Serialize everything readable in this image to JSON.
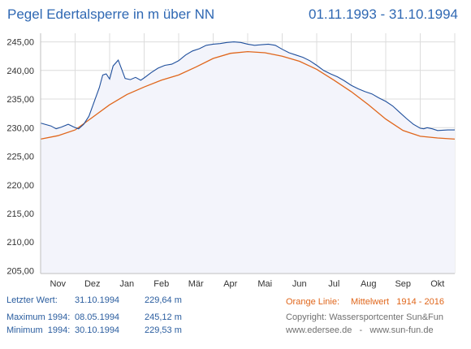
{
  "header": {
    "title": "Pegel Edertalsperre in m über NN",
    "date_range": "01.11.1993 - 31.10.1994"
  },
  "footer": {
    "last_label": "Letzter Wert:",
    "last_date": "31.10.1994",
    "last_value": "229,64 m",
    "max_label": "Maximum 1994:",
    "max_date": "08.05.1994",
    "max_value": "245,12 m",
    "min_label": "Minimum  1994:",
    "min_date": "30.10.1994",
    "min_value": "229,53 m",
    "legend_label": "Orange Linie:",
    "legend_text": "Mittelwert   1914 - 2016",
    "copyright": "Copyright: Wassersportcenter Sun&Fun",
    "links": "www.edersee.de   -   www.sun-fun.de"
  },
  "colors": {
    "series_1994": "#1f4f9c",
    "mean": "#e0661b",
    "fill": "#f3f4fb",
    "grid": "#dcdcdc",
    "text": "#2a5d9f"
  },
  "chart_data": {
    "type": "line",
    "x_unit": "month (0 = 1 Nov, 12 = 31 Oct)",
    "x_tick_labels": [
      "Nov",
      "Dez",
      "Jan",
      "Feb",
      "Mär",
      "Apr",
      "Mai",
      "Jun",
      "Jul",
      "Aug",
      "Sep",
      "Okt"
    ],
    "y_tick_labels": [
      "205,00",
      "210,00",
      "215,00",
      "220,00",
      "225,00",
      "230,00",
      "235,00",
      "240,00",
      "245,00"
    ],
    "ylim": [
      204.5,
      246.5
    ],
    "xlim": [
      0,
      12
    ],
    "grid": true,
    "series": [
      {
        "key": "1994",
        "points": [
          [
            0,
            230.8
          ],
          [
            0.3,
            230.3
          ],
          [
            0.45,
            229.8
          ],
          [
            0.6,
            230.1
          ],
          [
            0.8,
            230.6
          ],
          [
            1.0,
            230.0
          ],
          [
            1.1,
            229.8
          ],
          [
            1.25,
            230.6
          ],
          [
            1.4,
            232.0
          ],
          [
            1.55,
            234.5
          ],
          [
            1.7,
            237.0
          ],
          [
            1.8,
            239.2
          ],
          [
            1.9,
            239.4
          ],
          [
            2.0,
            238.5
          ],
          [
            2.1,
            240.8
          ],
          [
            2.25,
            241.8
          ],
          [
            2.35,
            240.2
          ],
          [
            2.45,
            238.6
          ],
          [
            2.6,
            238.4
          ],
          [
            2.75,
            238.8
          ],
          [
            2.9,
            238.3
          ],
          [
            3.0,
            238.7
          ],
          [
            3.2,
            239.6
          ],
          [
            3.4,
            240.4
          ],
          [
            3.6,
            240.9
          ],
          [
            3.8,
            241.1
          ],
          [
            4.0,
            241.7
          ],
          [
            4.2,
            242.7
          ],
          [
            4.4,
            243.4
          ],
          [
            4.6,
            243.8
          ],
          [
            4.8,
            244.4
          ],
          [
            5.0,
            244.6
          ],
          [
            5.2,
            244.7
          ],
          [
            5.4,
            244.9
          ],
          [
            5.6,
            245.0
          ],
          [
            5.8,
            244.9
          ],
          [
            6.0,
            244.6
          ],
          [
            6.2,
            244.4
          ],
          [
            6.4,
            244.5
          ],
          [
            6.6,
            244.6
          ],
          [
            6.8,
            244.4
          ],
          [
            7.0,
            243.7
          ],
          [
            7.2,
            243.1
          ],
          [
            7.4,
            242.7
          ],
          [
            7.6,
            242.3
          ],
          [
            7.8,
            241.7
          ],
          [
            8.0,
            240.9
          ],
          [
            8.2,
            240.0
          ],
          [
            8.4,
            239.4
          ],
          [
            8.6,
            238.9
          ],
          [
            8.8,
            238.2
          ],
          [
            9.0,
            237.4
          ],
          [
            9.2,
            236.8
          ],
          [
            9.4,
            236.3
          ],
          [
            9.6,
            235.9
          ],
          [
            9.8,
            235.2
          ],
          [
            10.0,
            234.6
          ],
          [
            10.2,
            233.8
          ],
          [
            10.4,
            232.7
          ],
          [
            10.6,
            231.6
          ],
          [
            10.8,
            230.6
          ],
          [
            11.0,
            229.9
          ],
          [
            11.1,
            229.8
          ],
          [
            11.2,
            230.0
          ],
          [
            11.35,
            229.8
          ],
          [
            11.5,
            229.5
          ],
          [
            11.8,
            229.6
          ],
          [
            12.0,
            229.6
          ]
        ]
      },
      {
        "key": "mean",
        "points": [
          [
            0,
            228.0
          ],
          [
            0.5,
            228.6
          ],
          [
            1.0,
            229.6
          ],
          [
            1.5,
            231.8
          ],
          [
            2.0,
            234.0
          ],
          [
            2.5,
            235.8
          ],
          [
            3.0,
            237.1
          ],
          [
            3.5,
            238.3
          ],
          [
            4.0,
            239.2
          ],
          [
            4.5,
            240.6
          ],
          [
            5.0,
            242.1
          ],
          [
            5.5,
            243.0
          ],
          [
            6.0,
            243.3
          ],
          [
            6.5,
            243.1
          ],
          [
            7.0,
            242.5
          ],
          [
            7.5,
            241.6
          ],
          [
            8.0,
            240.2
          ],
          [
            8.5,
            238.3
          ],
          [
            9.0,
            236.3
          ],
          [
            9.5,
            234.0
          ],
          [
            10.0,
            231.5
          ],
          [
            10.5,
            229.5
          ],
          [
            11.0,
            228.5
          ],
          [
            11.5,
            228.2
          ],
          [
            12.0,
            228.0
          ]
        ]
      }
    ]
  }
}
